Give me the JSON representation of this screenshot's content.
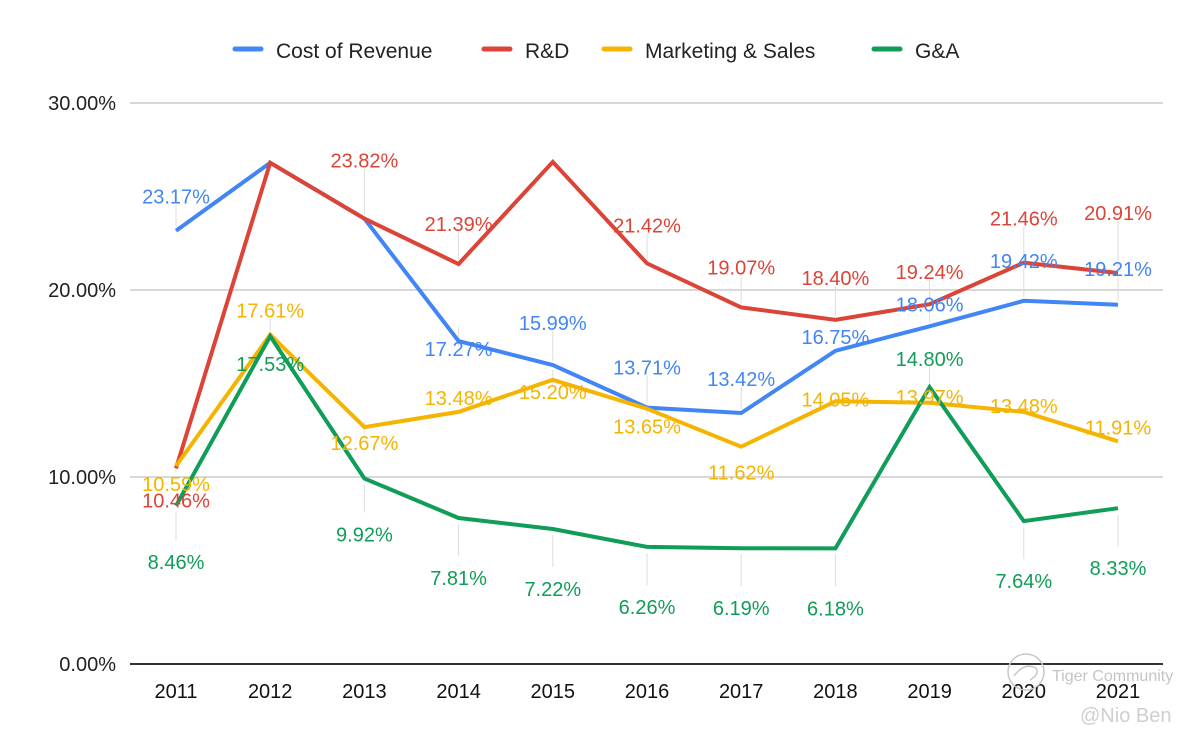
{
  "chart_data": {
    "type": "line",
    "title": "",
    "xlabel": "",
    "ylabel": "",
    "ylim": [
      0,
      30
    ],
    "yticks": [
      "0.00%",
      "10.00%",
      "20.00%",
      "30.00%"
    ],
    "yticks_values": [
      0,
      10,
      20,
      30
    ],
    "grid": true,
    "legend_position": "top",
    "categories": [
      "2011",
      "2012",
      "2013",
      "2014",
      "2015",
      "2016",
      "2017",
      "2018",
      "2019",
      "2020",
      "2021"
    ],
    "series": [
      {
        "name": "Cost of Revenue",
        "color": "#4285f4",
        "values": [
          23.17,
          26.8,
          23.82,
          17.27,
          15.99,
          13.71,
          13.42,
          16.75,
          18.06,
          19.42,
          19.21
        ],
        "labels": [
          "23.17%",
          "",
          "",
          "17.27%",
          "15.99%",
          "13.71%",
          "13.42%",
          "16.75%",
          "18.06%",
          "19.42%",
          "19.21%"
        ]
      },
      {
        "name": "R&D",
        "color": "#db4437",
        "values": [
          10.46,
          26.8,
          23.82,
          21.39,
          26.85,
          21.42,
          19.07,
          18.4,
          19.24,
          21.46,
          20.91
        ],
        "labels": [
          "10.46%",
          "",
          "23.82%",
          "21.39%",
          "",
          "21.42%",
          "19.07%",
          "18.40%",
          "19.24%",
          "21.46%",
          "20.91%"
        ]
      },
      {
        "name": "Marketing & Sales",
        "color": "#f4b400",
        "values": [
          10.59,
          17.61,
          12.67,
          13.48,
          15.2,
          13.65,
          11.62,
          14.05,
          13.97,
          13.48,
          11.91
        ],
        "labels": [
          "10.59%",
          "17.61%",
          "12.67%",
          "13.48%",
          "15.20%",
          "13.65%",
          "11.62%",
          "14.05%",
          "13.97%",
          "13.48%",
          "11.91%"
        ]
      },
      {
        "name": "G&A",
        "color": "#0f9d58",
        "values": [
          8.46,
          17.53,
          9.92,
          7.81,
          7.22,
          6.26,
          6.19,
          6.18,
          14.8,
          7.64,
          8.33
        ],
        "labels": [
          "8.46%",
          "17.53%",
          "9.92%",
          "7.81%",
          "7.22%",
          "6.26%",
          "6.19%",
          "6.18%",
          "14.80%",
          "7.64%",
          "8.33%"
        ]
      }
    ]
  },
  "watermark": {
    "line1": "Tiger Community",
    "line2": "@Nio Ben"
  }
}
